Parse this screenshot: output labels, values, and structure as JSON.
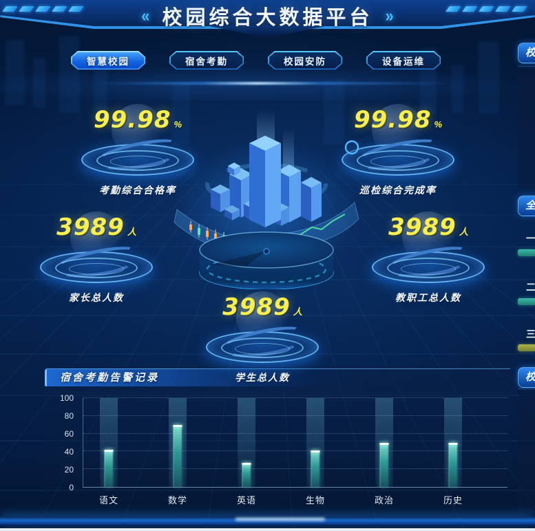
{
  "header": {
    "title": "校园综合大数据平台",
    "left_arrows": "«",
    "right_arrows": "»"
  },
  "tabs": [
    {
      "label": "智慧校园",
      "active": true
    },
    {
      "label": "宿舍考勤",
      "active": false
    },
    {
      "label": "校园安防",
      "active": false
    },
    {
      "label": "设备运维",
      "active": false
    }
  ],
  "stats": [
    {
      "value": "99.98",
      "unit": "%",
      "label": "考勤综合合格率"
    },
    {
      "value": "99.98",
      "unit": "%",
      "label": "巡检综合完成率"
    },
    {
      "value": "3989",
      "unit": "人",
      "label": "家长总人数"
    },
    {
      "value": "3989",
      "unit": "人",
      "label": "教职工总人数"
    },
    {
      "value": "3989",
      "unit": "人",
      "label": "学生总人数"
    }
  ],
  "alarm_panel": {
    "title": "宿舍考勤告警记录"
  },
  "chart_data": {
    "type": "bar",
    "title": "宿舍考勤告警记录",
    "categories": [
      "语文",
      "数学",
      "英语",
      "生物",
      "政治",
      "历史"
    ],
    "values": [
      42,
      70,
      27,
      41,
      50,
      50
    ],
    "xlabel": "",
    "ylabel": "",
    "ylim": [
      0,
      100
    ],
    "yticks": [
      0,
      20,
      40,
      60,
      80,
      100
    ],
    "grid": "dotted-horizontal",
    "legend": "none",
    "bar_color": "#3fbfae"
  },
  "right_panels": {
    "top_title_partial": "校",
    "middle_title_partial": "全",
    "rank_items": [
      {
        "label": "一",
        "bar_color": "#2da092"
      },
      {
        "label": "二",
        "bar_color": "#2da092"
      },
      {
        "label": "三",
        "bar_color": "#8e9a3e"
      }
    ],
    "bottom_title_partial": "校"
  },
  "colors": {
    "background": "#05204a",
    "accent_cyan": "#47b9ff",
    "kpi_yellow": "#f9ef4f",
    "tab_active_blue": "#1565e0",
    "bar_teal": "#3fbfae",
    "rank_olive": "#8e9a3e",
    "bottom_band_blue": "#1668c8"
  }
}
